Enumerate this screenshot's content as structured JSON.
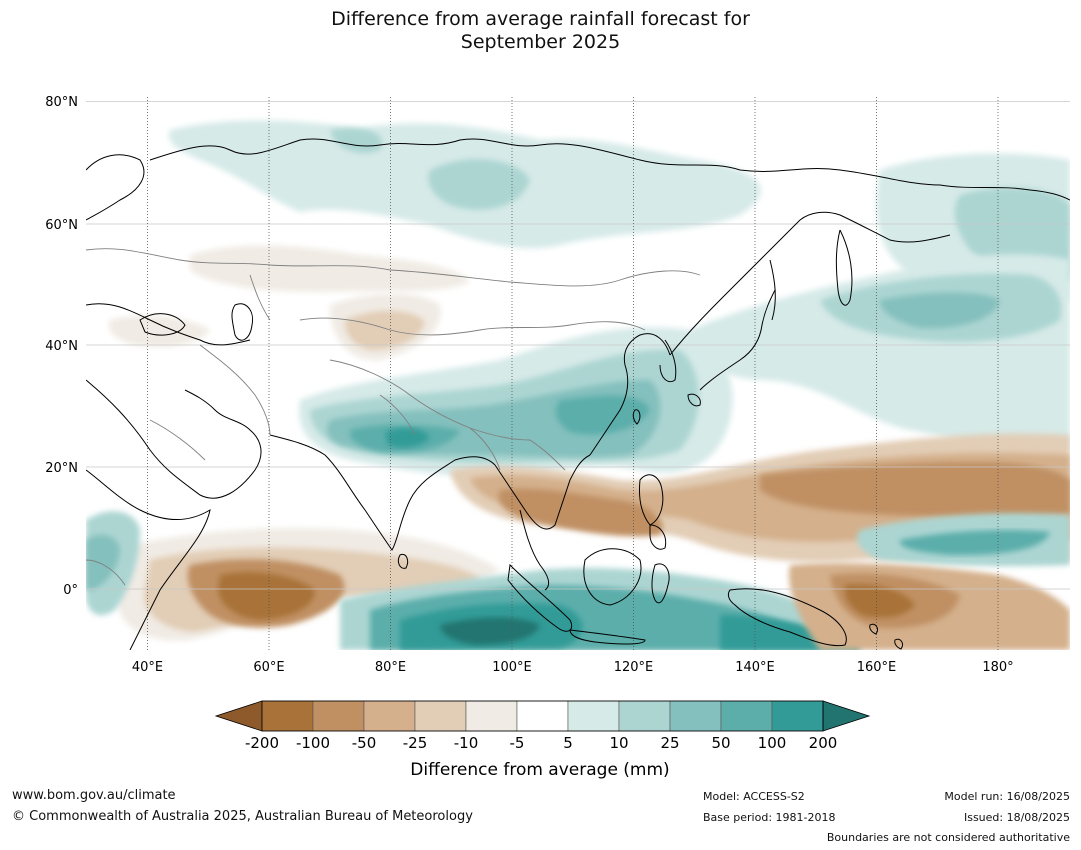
{
  "title": {
    "line1": "Difference from average rainfall forecast for",
    "line2": "September 2025"
  },
  "map": {
    "lat_labels": [
      "80°N",
      "60°N",
      "40°N",
      "20°N",
      "0°"
    ],
    "lon_labels": [
      "40°E",
      "60°E",
      "80°E",
      "100°E",
      "120°E",
      "140°E",
      "160°E",
      "180°"
    ],
    "lon_range": [
      30,
      192
    ],
    "lat_range": [
      -10,
      81
    ]
  },
  "legend": {
    "title": "Difference from average (mm)",
    "ticks": [
      "-200",
      "-100",
      "-50",
      "-25",
      "-10",
      "-5",
      "5",
      "10",
      "25",
      "50",
      "100",
      "200"
    ],
    "colors": [
      "#8e5a2b",
      "#a87239",
      "#c09063",
      "#d4b08c",
      "#e2cdb6",
      "#f0ebe4",
      "#ffffff",
      "#d6eae8",
      "#acd5d2",
      "#84c0bd",
      "#5caeab",
      "#339b97",
      "#217470"
    ]
  },
  "footer": {
    "website": "www.bom.gov.au/climate",
    "copyright": "© Commonwealth of Australia 2025, Australian Bureau of Meteorology",
    "model": "Model: ACCESS-S2",
    "base_period": "Base period: 1981-2018",
    "model_run": "Model run: 16/08/2025",
    "issued": "Issued: 18/08/2025",
    "boundaries_note": "Boundaries are not considered authoritative"
  }
}
